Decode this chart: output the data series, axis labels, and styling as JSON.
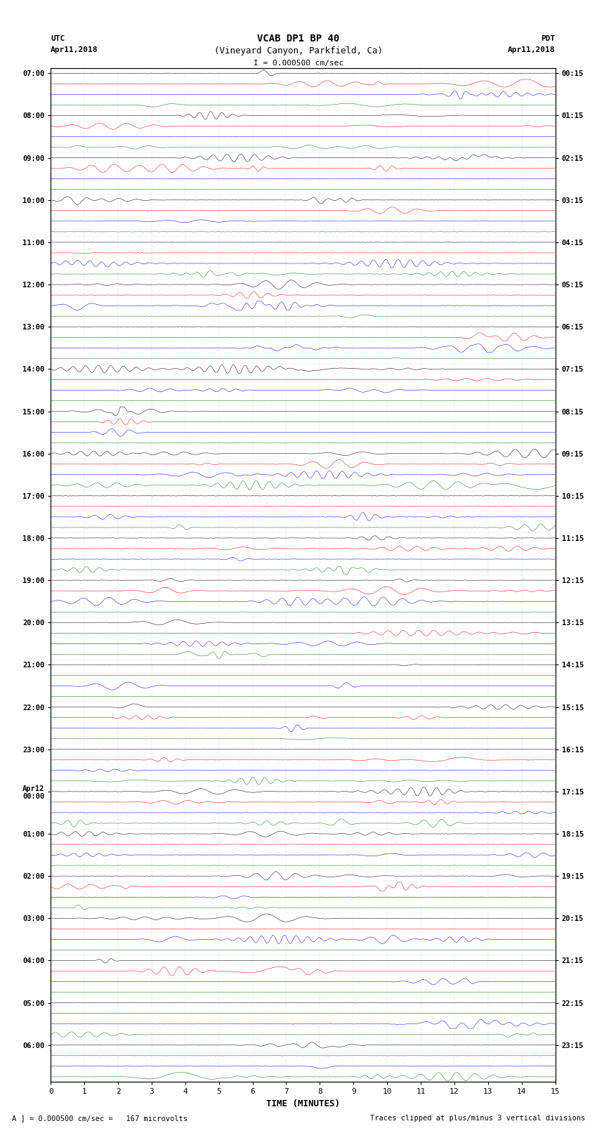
{
  "title_line1": "VCAB DP1 BP 40",
  "title_line2": "(Vineyard Canyon, Parkfield, Ca)",
  "scale_label": "I = 0.000500 cm/sec",
  "left_label_top": "UTC",
  "left_label_date": "Apr11,2018",
  "right_label_top": "PDT",
  "right_label_date": "Apr11,2018",
  "bottom_label": "TIME (MINUTES)",
  "footer_left": "A ] = 0.000500 cm/sec =   167 microvolts",
  "footer_right": "Traces clipped at plus/minus 3 vertical divisions",
  "xlabel_ticks": [
    0,
    1,
    2,
    3,
    4,
    5,
    6,
    7,
    8,
    9,
    10,
    11,
    12,
    13,
    14,
    15
  ],
  "utc_hour_labels": [
    "07:00",
    "08:00",
    "09:00",
    "10:00",
    "11:00",
    "12:00",
    "13:00",
    "14:00",
    "15:00",
    "16:00",
    "17:00",
    "18:00",
    "19:00",
    "20:00",
    "21:00",
    "22:00",
    "23:00",
    "Apr12\n00:00",
    "01:00",
    "02:00",
    "03:00",
    "04:00",
    "05:00",
    "06:00"
  ],
  "pdt_hour_labels": [
    "00:15",
    "01:15",
    "02:15",
    "03:15",
    "04:15",
    "05:15",
    "06:15",
    "07:15",
    "08:15",
    "09:15",
    "10:15",
    "11:15",
    "12:15",
    "13:15",
    "14:15",
    "15:15",
    "16:15",
    "17:15",
    "18:15",
    "19:15",
    "20:15",
    "21:15",
    "22:15",
    "23:15"
  ],
  "trace_colors": [
    "black",
    "red",
    "blue",
    "green"
  ],
  "num_hour_groups": 24,
  "traces_per_group": 4,
  "bg_color": "white",
  "seed": 42
}
